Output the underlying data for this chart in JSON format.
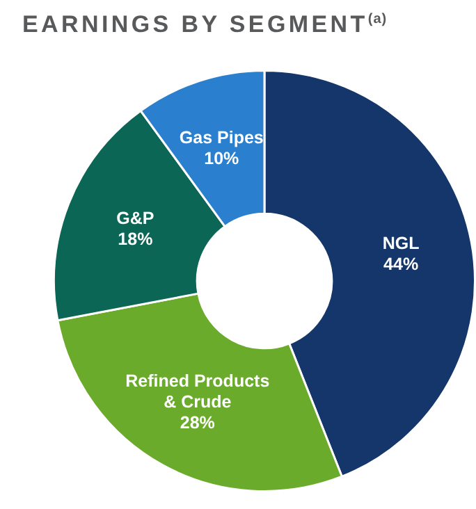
{
  "chart_data": {
    "type": "donut",
    "title": "EARNINGS BY SEGMENT$^{(a)}$",
    "categories": [
      "NGL",
      "Refined Products & Crude",
      "G&P",
      "Gas Pipes"
    ],
    "values": [
      44,
      28,
      18,
      10
    ],
    "value_labels": [
      "44%",
      "28%",
      "18%",
      "10%"
    ],
    "colors": [
      "#15366a",
      "#6aab2b",
      "#0c6656",
      "#2a7fcf"
    ],
    "legend": false
  }
}
